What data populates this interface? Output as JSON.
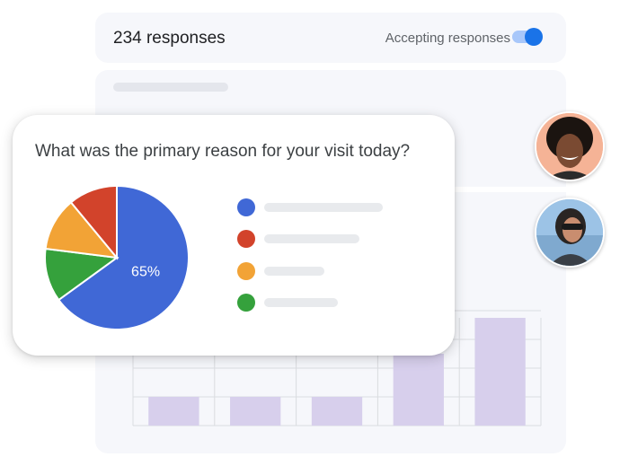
{
  "header": {
    "responses_label": "234 responses",
    "accepting_label": "Accepting responses",
    "accepting_enabled": true
  },
  "question": {
    "title": "What was the primary reason for your visit today?"
  },
  "colors": {
    "blue": "#4068d6",
    "red": "#d2432b",
    "orange": "#f2a336",
    "green": "#35a13c",
    "bar": "#d7cfec",
    "toggle": "#1a73e8"
  },
  "avatars": [
    {
      "name": "avatar-person-1"
    },
    {
      "name": "avatar-person-2"
    }
  ],
  "chart_data": [
    {
      "type": "pie",
      "slices": [
        {
          "label": "",
          "value": 65,
          "color": "#4068d6",
          "data_label": "65%"
        },
        {
          "label": "",
          "value": 12,
          "color": "#35a13c"
        },
        {
          "label": "",
          "value": 12,
          "color": "#f2a336"
        },
        {
          "label": "",
          "value": 11,
          "color": "#d2432b"
        }
      ],
      "legend": [
        "#4068d6",
        "#d2432b",
        "#f2a336",
        "#35a13c"
      ]
    },
    {
      "type": "bar",
      "values": [
        1,
        1,
        1,
        2.5,
        3.75
      ],
      "color": "#d7cfec",
      "grid": true
    }
  ]
}
